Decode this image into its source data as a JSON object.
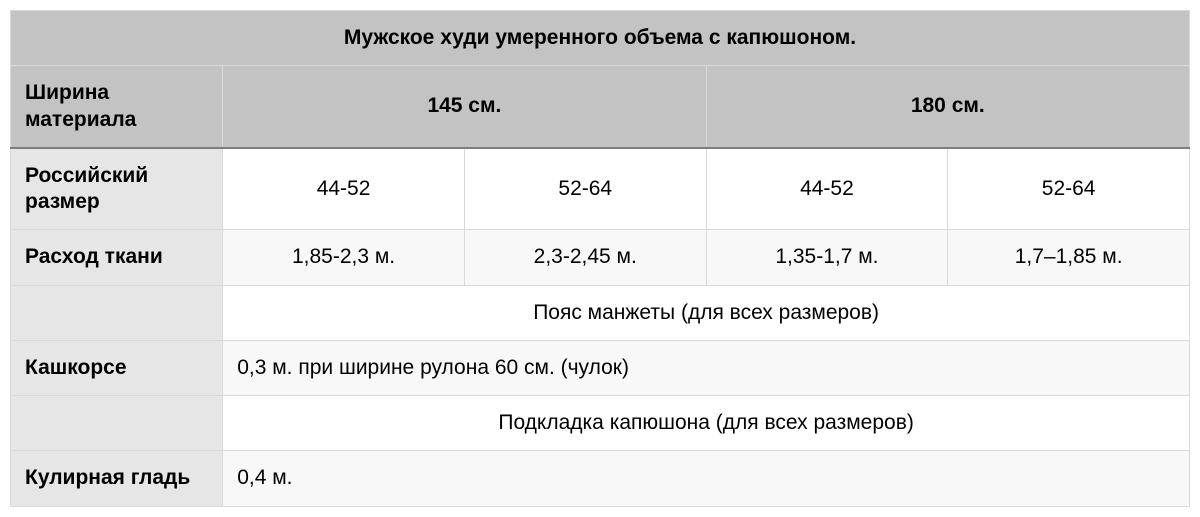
{
  "table": {
    "type": "table",
    "title": "Мужское худи умеренного объема с капюшоном.",
    "colors": {
      "header_bg": "#c3c3c3",
      "rowhead_bg": "#e6e6e6",
      "row_alt_bg": "#f8f8f8",
      "row_bg": "#ffffff",
      "border": "#d9d9d9",
      "header_divider": "#7d7d7d",
      "text": "#000000"
    },
    "font": {
      "family": "Helvetica",
      "size_pt": 16,
      "header_weight": 700,
      "body_weight": 400
    },
    "column_widths_pct": [
      18,
      20.5,
      20.5,
      20.5,
      20.5
    ],
    "width_header": {
      "label": "Ширина материала",
      "groups": [
        "145 см.",
        "180 см."
      ]
    },
    "rows": {
      "russian_size": {
        "label": "Российский размер",
        "values": [
          "44-52",
          "52-64",
          "44-52",
          "52-64"
        ]
      },
      "fabric_usage": {
        "label": "Расход ткани",
        "values": [
          "1,85-2,3 м.",
          "2,3-2,45 м.",
          "1,35-1,7 м.",
          "1,7–1,85 м."
        ]
      },
      "cuff_note": {
        "label": "",
        "span_text": "Пояс манжеты (для всех размеров)"
      },
      "kashkorse": {
        "label": "Кашкорсе",
        "span_text": "0,3 м. при ширине рулона 60 см. (чулок)",
        "align": "left"
      },
      "hood_lining_note": {
        "label": "",
        "span_text": "Подкладка капюшона (для всех размеров)"
      },
      "kulir": {
        "label": "Кулирная гладь",
        "span_text": "0,4 м.",
        "align": "left"
      }
    }
  }
}
